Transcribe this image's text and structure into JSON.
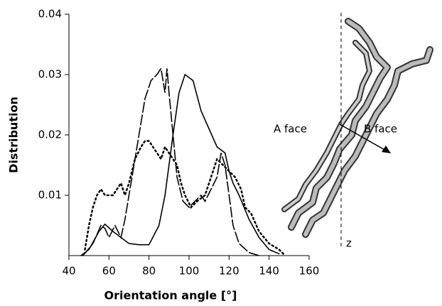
{
  "chart_data": {
    "type": "line",
    "xlabel": "Orientation angle [°]",
    "ylabel": "Distribution",
    "xlim": [
      40,
      160
    ],
    "xticks": [
      40,
      60,
      80,
      100,
      120,
      140,
      160
    ],
    "ylim": [
      0,
      0.04
    ],
    "yticks": [
      0.01,
      0.02,
      0.03,
      0.04
    ],
    "annotations": [
      "A face",
      "B face",
      "z"
    ],
    "series": [
      {
        "color": "#000000",
        "style": "solid",
        "x": [
          46,
          50,
          55,
          58,
          62,
          66,
          70,
          75,
          80,
          85,
          88,
          92,
          95,
          98,
          102,
          106,
          110,
          114,
          118,
          120,
          122,
          125,
          130,
          135,
          140,
          145
        ],
        "values": [
          0,
          0.001,
          0.004,
          0.0052,
          0.004,
          0.003,
          0.002,
          0.0018,
          0.0018,
          0.005,
          0.01,
          0.02,
          0.027,
          0.03,
          0.029,
          0.024,
          0.021,
          0.018,
          0.017,
          0.014,
          0.012,
          0.01,
          0.006,
          0.003,
          0.001,
          0.0003
        ]
      },
      {
        "color": "#000000",
        "style": "dash",
        "x": [
          47,
          52,
          56,
          58,
          60,
          63,
          66,
          68,
          72,
          75,
          78,
          81,
          84,
          86,
          88,
          89,
          90,
          92,
          94,
          97,
          100,
          103,
          106,
          108,
          111,
          114,
          116,
          118,
          120,
          122,
          125,
          130,
          135
        ],
        "values": [
          0,
          0.002,
          0.005,
          0.0045,
          0.003,
          0.005,
          0.003,
          0.006,
          0.014,
          0.02,
          0.026,
          0.029,
          0.03,
          0.031,
          0.027,
          0.031,
          0.027,
          0.02,
          0.013,
          0.009,
          0.008,
          0.009,
          0.01,
          0.009,
          0.011,
          0.013,
          0.017,
          0.015,
          0.01,
          0.005,
          0.002,
          0.0005,
          0
        ]
      },
      {
        "color": "#000000",
        "style": "dot",
        "x": [
          48,
          50,
          52,
          54,
          56,
          58,
          62,
          64,
          66,
          68,
          70,
          73,
          76,
          78,
          80,
          82,
          84,
          86,
          88,
          90,
          92,
          94,
          96,
          98,
          101,
          104,
          108,
          111,
          114,
          117,
          120,
          123,
          126,
          128,
          131,
          135,
          140,
          145,
          148
        ],
        "values": [
          0.001,
          0.005,
          0.008,
          0.01,
          0.011,
          0.01,
          0.01,
          0.011,
          0.012,
          0.01,
          0.012,
          0.016,
          0.018,
          0.019,
          0.019,
          0.018,
          0.017,
          0.016,
          0.018,
          0.017,
          0.016,
          0.015,
          0.012,
          0.01,
          0.008,
          0.009,
          0.01,
          0.013,
          0.016,
          0.015,
          0.014,
          0.013,
          0.011,
          0.008,
          0.007,
          0.004,
          0.002,
          0.001,
          0
        ]
      }
    ]
  }
}
